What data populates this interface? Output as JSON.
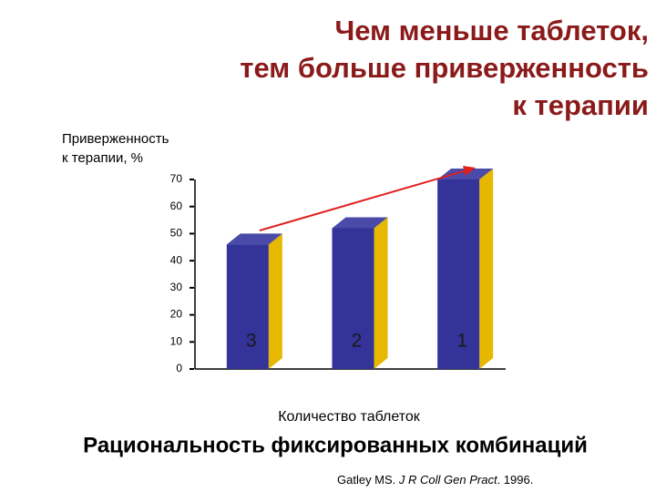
{
  "chart_data": {
    "type": "bar3d",
    "title": [
      "Чем меньше таблеток,",
      "тем больше приверженность",
      "к терапии"
    ],
    "ylabel": [
      "Приверженность",
      "к терапии, %"
    ],
    "xlabel": "Количество таблеток",
    "categories": [
      "3",
      "2",
      "1"
    ],
    "values": [
      46,
      52,
      70
    ],
    "color": "#333399",
    "side_color": "#e6b800",
    "top_color": "#4a4aa8",
    "ylim": [
      0,
      70
    ],
    "yticks": [
      0,
      10,
      20,
      30,
      40,
      50,
      60,
      70
    ]
  },
  "footer": "Рациональность фиксированных комбинаций",
  "citation": [
    "Gatley MS. ",
    "J R Coll Gen Pract",
    ". 1996."
  ]
}
